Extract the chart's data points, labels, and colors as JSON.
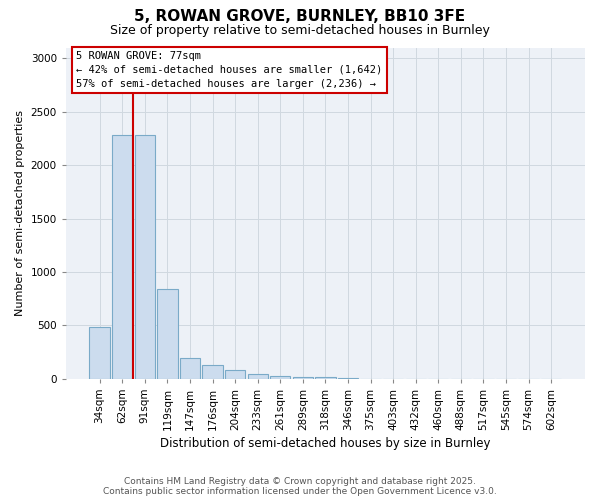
{
  "title": "5, ROWAN GROVE, BURNLEY, BB10 3FE",
  "subtitle": "Size of property relative to semi-detached houses in Burnley",
  "xlabel": "Distribution of semi-detached houses by size in Burnley",
  "ylabel": "Number of semi-detached properties",
  "categories": [
    "34sqm",
    "62sqm",
    "91sqm",
    "119sqm",
    "147sqm",
    "176sqm",
    "204sqm",
    "233sqm",
    "261sqm",
    "289sqm",
    "318sqm",
    "346sqm",
    "375sqm",
    "403sqm",
    "432sqm",
    "460sqm",
    "488sqm",
    "517sqm",
    "545sqm",
    "574sqm",
    "602sqm"
  ],
  "values": [
    490,
    2280,
    2280,
    840,
    200,
    130,
    80,
    50,
    30,
    20,
    15,
    5,
    2,
    0,
    0,
    0,
    0,
    0,
    0,
    0,
    0
  ],
  "bar_color": "#ccdcee",
  "bar_edge_color": "#7aaac8",
  "red_line_x": 1.5,
  "annotation_text": "5 ROWAN GROVE: 77sqm\n← 42% of semi-detached houses are smaller (1,642)\n57% of semi-detached houses are larger (2,236) →",
  "ylim": [
    0,
    3100
  ],
  "yticks": [
    0,
    500,
    1000,
    1500,
    2000,
    2500,
    3000
  ],
  "footer": "Contains HM Land Registry data © Crown copyright and database right 2025.\nContains public sector information licensed under the Open Government Licence v3.0.",
  "grid_color": "#d0d8e0",
  "bg_color": "#edf1f7",
  "title_fontsize": 11,
  "subtitle_fontsize": 9,
  "ylabel_fontsize": 8,
  "xlabel_fontsize": 8.5,
  "tick_fontsize": 7.5,
  "footer_fontsize": 6.5
}
